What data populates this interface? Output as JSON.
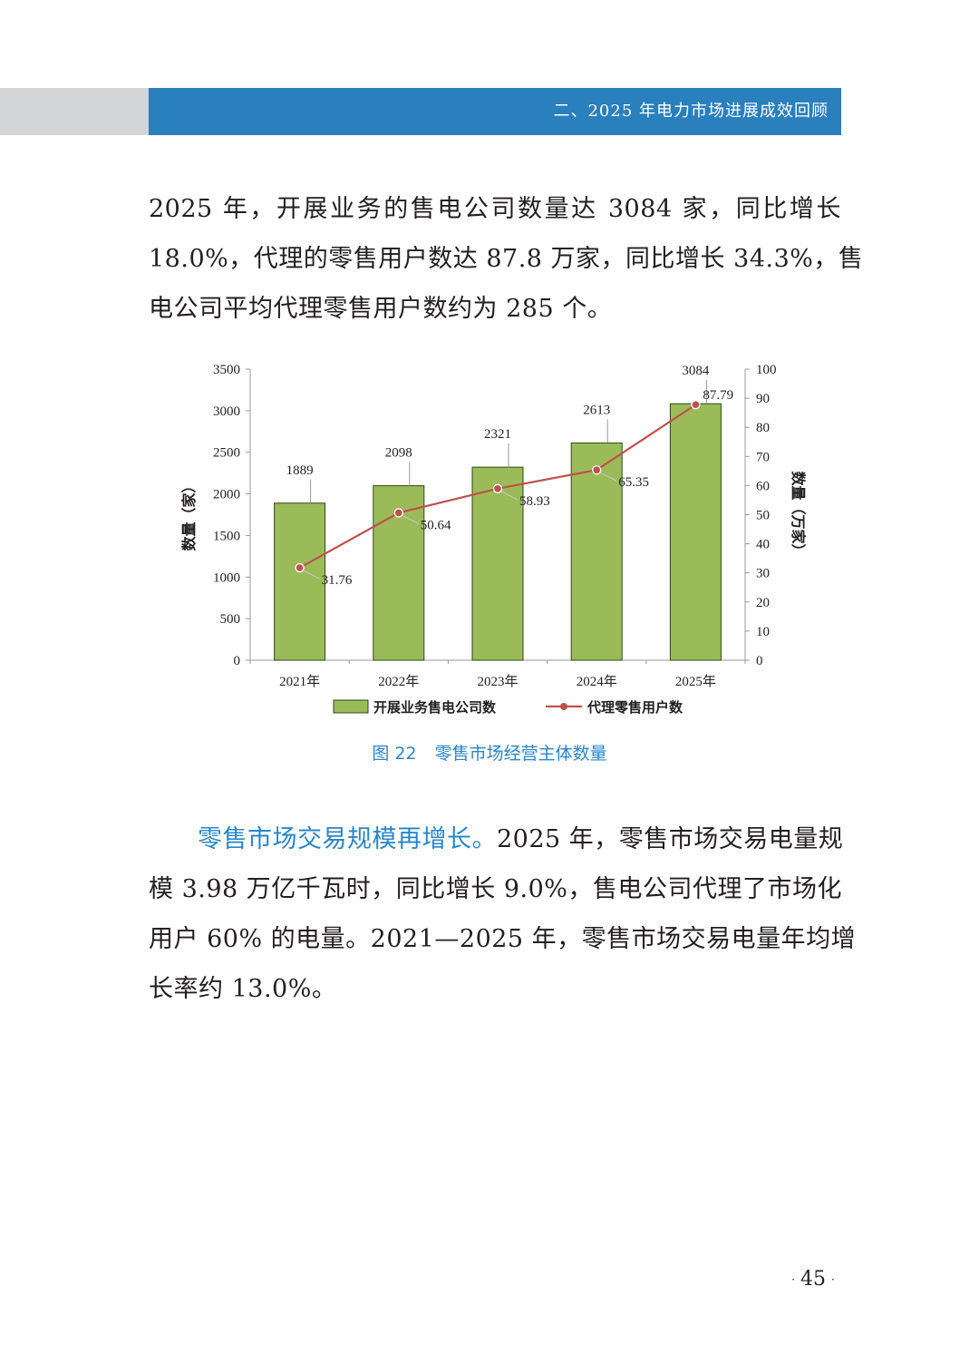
{
  "header": {
    "section_title": "二、2025 年电力市场进展成效回顾"
  },
  "paragraph1": {
    "lines": [
      "2025 年，开展业务的售电公司数量达 3084 家，同比增长",
      "18.0%，代理的零售用户数达 87.8 万家，同比增长 34.3%，售",
      "电公司平均代理零售用户数约为 285 个。"
    ]
  },
  "figure": {
    "number": "图 22",
    "title": "零售市场经营主体数量"
  },
  "chart_data": {
    "type": "bar",
    "categories": [
      "2021年",
      "2022年",
      "2023年",
      "2024年",
      "2025年"
    ],
    "series": [
      {
        "name": "开展业务售电公司数",
        "type": "bar",
        "axis": "left",
        "values": [
          1889,
          2098,
          2321,
          2613,
          3084
        ],
        "color": "#9bbb59"
      },
      {
        "name": "代理零售用户数",
        "type": "line",
        "axis": "right",
        "values": [
          31.76,
          50.64,
          58.93,
          65.35,
          87.79
        ],
        "color": "#c0504d"
      }
    ],
    "ylabel_left": "数量（家）",
    "ylabel_right": "数量（万家）",
    "ylim_left": [
      0,
      3500
    ],
    "yticks_left": [
      0,
      500,
      1000,
      1500,
      2000,
      2500,
      3000,
      3500
    ],
    "ylim_right": [
      0,
      100
    ],
    "yticks_right": [
      0,
      10,
      20,
      30,
      40,
      50,
      60,
      70,
      80,
      90,
      100
    ],
    "grid": false,
    "legend_position": "bottom"
  },
  "paragraph2": {
    "lead": "零售市场交易规模再增长。",
    "line1_rest": "2025 年，零售市场交易电量规",
    "lines": [
      "模 3.98 万亿千瓦时，同比增长 9.0%，售电公司代理了市场化",
      "用户 60% 的电量。2021—2025 年，零售市场交易电量年均增",
      "长率约 13.0%。"
    ]
  },
  "footer": {
    "page_number": "45"
  }
}
